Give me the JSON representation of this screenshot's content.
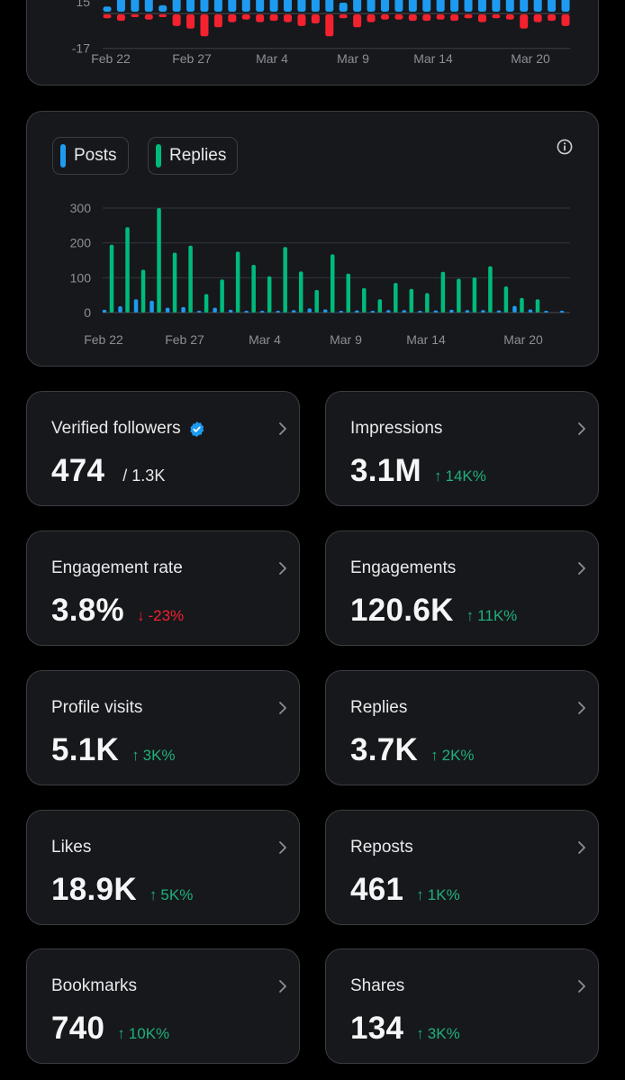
{
  "colors": {
    "posts": "#1d9bf0",
    "replies": "#00ba7c",
    "negative": "#f4212e",
    "up": "#1fb07a",
    "down": "#f4212e",
    "card_bg": "#16181c",
    "border": "#3a3d42"
  },
  "chart_data": [
    {
      "type": "bar",
      "y_ticks_visible": [
        "15",
        "-17"
      ],
      "x_ticks": [
        "Feb 22",
        "Feb 27",
        "Mar 4",
        "Mar 9",
        "Mar 14",
        "Mar 20"
      ],
      "series": [
        {
          "color": "#1d9bf0",
          "values": [
            4,
            15,
            13,
            15,
            5,
            15,
            15,
            11,
            15,
            15,
            15,
            15,
            15,
            15,
            15,
            15,
            15,
            7,
            15,
            15,
            15,
            15,
            15,
            15,
            15,
            15,
            15,
            15,
            15,
            15,
            15,
            15,
            15,
            15
          ]
        },
        {
          "color": "#f4212e",
          "values": [
            -3,
            -5,
            -2,
            -4,
            -2,
            -9,
            -11,
            -17,
            -10,
            -6,
            -4,
            -6,
            -5,
            -6,
            -9,
            -7,
            -17,
            -3,
            -10,
            -6,
            -4,
            -4,
            -5,
            -5,
            -4,
            -5,
            -3,
            -6,
            -3,
            -4,
            -11,
            -6,
            -5,
            -9
          ]
        }
      ],
      "ylim": [
        -17,
        15
      ]
    },
    {
      "type": "bar",
      "legend": [
        "Posts",
        "Replies"
      ],
      "y_ticks": [
        "300",
        "200",
        "100",
        "0"
      ],
      "x_ticks": [
        "Feb 22",
        "Feb 27",
        "Mar 4",
        "Mar 9",
        "Mar 14",
        "Mar 20"
      ],
      "ylim": [
        0,
        300
      ],
      "categories": [
        "Feb 22",
        "Feb 23",
        "Feb 24",
        "Feb 25",
        "Feb 26",
        "Feb 27",
        "Feb 28",
        "Mar 1",
        "Mar 2",
        "Mar 3",
        "Mar 4",
        "Mar 5",
        "Mar 6",
        "Mar 7",
        "Mar 8",
        "Mar 9",
        "Mar 10",
        "Mar 11",
        "Mar 12",
        "Mar 13",
        "Mar 14",
        "Mar 15",
        "Mar 16",
        "Mar 17",
        "Mar 18",
        "Mar 19",
        "Mar 20",
        "Mar 21",
        "Mar 22",
        "Mar 23"
      ],
      "series": [
        {
          "name": "Posts",
          "color": "#1d9bf0",
          "values": [
            8,
            18,
            38,
            34,
            14,
            16,
            3,
            14,
            8,
            3,
            4,
            3,
            7,
            12,
            9,
            5,
            6,
            5,
            7,
            7,
            5,
            6,
            8,
            7,
            7,
            6,
            19,
            9,
            4,
            3
          ]
        },
        {
          "name": "Replies",
          "color": "#00ba7c",
          "values": [
            195,
            245,
            123,
            300,
            172,
            192,
            53,
            95,
            175,
            137,
            104,
            188,
            118,
            65,
            167,
            112,
            70,
            38,
            85,
            68,
            56,
            117,
            97,
            101,
            133,
            75,
            42,
            38,
            0,
            0
          ]
        }
      ]
    }
  ],
  "legend": {
    "posts": "Posts",
    "replies": "Replies"
  },
  "stats": [
    {
      "label": "Verified followers",
      "value": "474",
      "sub": "/ 1.3K",
      "verified": true
    },
    {
      "label": "Impressions",
      "value": "3.1M",
      "delta": "14K%",
      "dir": "up"
    },
    {
      "label": "Engagement rate",
      "value": "3.8%",
      "delta": "-23%",
      "dir": "down"
    },
    {
      "label": "Engagements",
      "value": "120.6K",
      "delta": "11K%",
      "dir": "up"
    },
    {
      "label": "Profile visits",
      "value": "5.1K",
      "delta": "3K%",
      "dir": "up"
    },
    {
      "label": "Replies",
      "value": "3.7K",
      "delta": "2K%",
      "dir": "up"
    },
    {
      "label": "Likes",
      "value": "18.9K",
      "delta": "5K%",
      "dir": "up"
    },
    {
      "label": "Reposts",
      "value": "461",
      "delta": "1K%",
      "dir": "up"
    },
    {
      "label": "Bookmarks",
      "value": "740",
      "delta": "10K%",
      "dir": "up"
    },
    {
      "label": "Shares",
      "value": "134",
      "delta": "3K%",
      "dir": "up"
    }
  ]
}
